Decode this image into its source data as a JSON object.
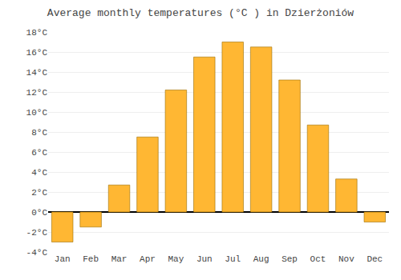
{
  "chart_data": {
    "type": "bar",
    "title": "Average monthly temperatures (°C ) in Dzierżoniów",
    "categories": [
      "Jan",
      "Feb",
      "Mar",
      "Apr",
      "May",
      "Jun",
      "Jul",
      "Aug",
      "Sep",
      "Oct",
      "Nov",
      "Dec"
    ],
    "values": [
      -3.0,
      -1.5,
      2.7,
      7.5,
      12.2,
      15.5,
      17.0,
      16.5,
      13.2,
      8.7,
      3.3,
      -1.0
    ],
    "color": "#FFB733",
    "ylim": [
      -4,
      18
    ],
    "yticks": [
      {
        "value": -4,
        "label": "-4°C"
      },
      {
        "value": -2,
        "label": "-2°C"
      },
      {
        "value": 0,
        "label": "0°C"
      },
      {
        "value": 2,
        "label": "2°C"
      },
      {
        "value": 4,
        "label": "4°C"
      },
      {
        "value": 6,
        "label": "6°C"
      },
      {
        "value": 8,
        "label": "8°C"
      },
      {
        "value": 10,
        "label": "10°C"
      },
      {
        "value": 12,
        "label": "12°C"
      },
      {
        "value": 14,
        "label": "14°C"
      },
      {
        "value": 16,
        "label": "16°C"
      },
      {
        "value": 18,
        "label": "18°C"
      }
    ],
    "grid": true
  }
}
